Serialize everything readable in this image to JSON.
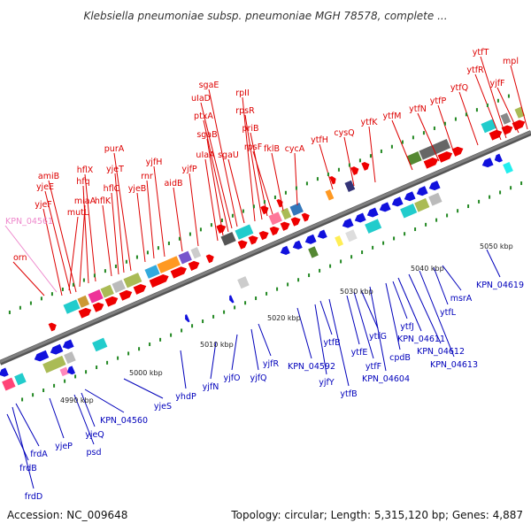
{
  "header": {
    "title": "Klebsiella pneumoniae subsp. pneumoniae MGH 78578, complete ..."
  },
  "footer": {
    "accession": "Accession: NC_009648",
    "summary": "Topology: circular; Length: 5,315,120 bp; Genes: 4,887"
  },
  "colors": {
    "forward_label": "#dd0000",
    "reverse_label": "#0000bb",
    "pseudo_label": "#ee88cc",
    "forward_arrow": "#ee0000",
    "reverse_arrow": "#1111dd",
    "backbone": "#808080",
    "tick_mark": "#228822"
  },
  "ticks": [
    {
      "label": "4990 kbp"
    },
    {
      "label": "5000 kbp"
    },
    {
      "label": "5010 kbp"
    },
    {
      "label": "5020 kbp"
    },
    {
      "label": "5030 kbp"
    },
    {
      "label": "5040 kbp"
    },
    {
      "label": "5050 kbp"
    }
  ],
  "forward_labels": [
    "orn",
    "mutL",
    "miaA",
    "hfq",
    "hflX",
    "hflK",
    "hflC",
    "yjeT",
    "purA",
    "rnr",
    "yjeB",
    "yjfH",
    "aidB",
    "yjfP",
    "uIaA",
    "sgaB",
    "ptxA",
    "uIaD",
    "sgaE",
    "sgaU",
    "rpII",
    "rpsR",
    "priB",
    "rpsF",
    "fklB",
    "cycA",
    "ytfH",
    "cysQ",
    "ytfK",
    "ytfM",
    "ytfN",
    "ytfP",
    "ytfQ",
    "ytfR",
    "ytfT",
    "yjfF",
    "mpl",
    "amiB",
    "yjeE",
    "yjeF"
  ],
  "pseudo_labels": [
    "KPN_04561"
  ],
  "reverse_labels": [
    "frdD",
    "frdB",
    "frdA",
    "yjeP",
    "psd",
    "yjeQ",
    "KPN_04560",
    "yjeS",
    "yhdP",
    "yjfN",
    "yjfO",
    "yjfQ",
    "yjfR",
    "KPN_04592",
    "yjfY",
    "ytfB",
    "ytfB",
    "ytfE",
    "ytfF",
    "ytfG",
    "KPN_04604",
    "ytfJ",
    "cpdB",
    "KPN_04611",
    "KPN_04612",
    "KPN_04613",
    "ytfL",
    "msrA",
    "KPN_04619"
  ]
}
